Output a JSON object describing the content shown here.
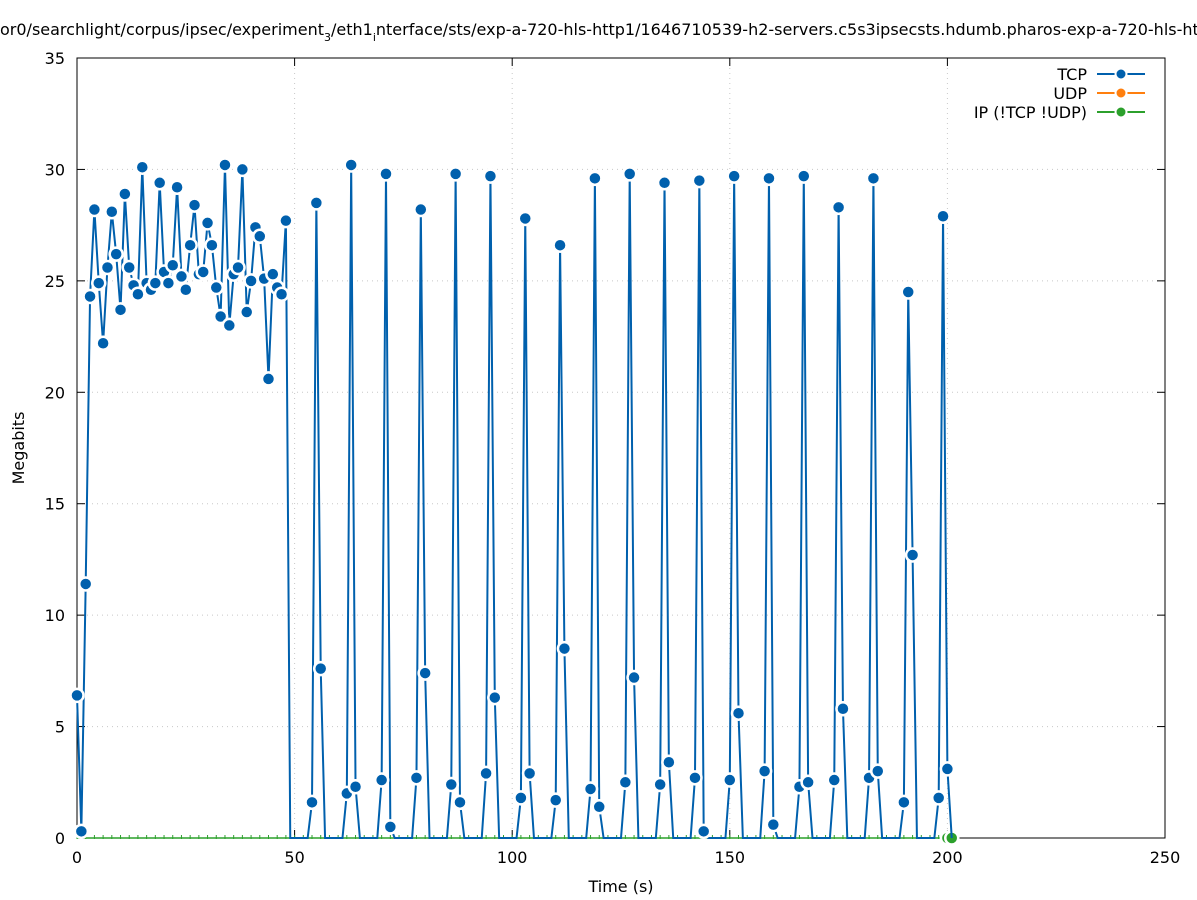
{
  "chart_data": {
    "type": "line",
    "title": "or0/searchlight/corpus/ipsec/experiment",
    "title_subscript": "3",
    "title_mid": "/eth1",
    "title_subscript2": "i",
    "title_tail": "nterface/sts/exp-a-720-hls-http1/1646710539-h2-servers.c5s3ipsecsts.hdumb.pharos-exp-a-720-hls-ht",
    "xlabel": "Time (s)",
    "ylabel": "Megabits",
    "xlim": [
      0,
      250
    ],
    "ylim": [
      0,
      35
    ],
    "xticks": [
      "0",
      "50",
      "100",
      "150",
      "200",
      "250"
    ],
    "yticks": [
      "0",
      "5",
      "10",
      "15",
      "20",
      "25",
      "30",
      "35"
    ],
    "grid": true,
    "legend_position": "top-right",
    "colors": {
      "TCP": "#0060ad",
      "UDP": "#ff7f0e",
      "IP": "#2ca02c"
    },
    "series": [
      {
        "name": "TCP",
        "points": [
          [
            0,
            6.4
          ],
          [
            1,
            0.3
          ],
          [
            2,
            11.4
          ],
          [
            3,
            24.3
          ],
          [
            4,
            28.2
          ],
          [
            5,
            24.9
          ],
          [
            6,
            22.2
          ],
          [
            7,
            25.6
          ],
          [
            8,
            28.1
          ],
          [
            9,
            26.2
          ],
          [
            10,
            23.7
          ],
          [
            11,
            28.9
          ],
          [
            12,
            25.6
          ],
          [
            13,
            24.8
          ],
          [
            14,
            24.4
          ],
          [
            15,
            30.1
          ],
          [
            16,
            24.9
          ],
          [
            17,
            24.6
          ],
          [
            18,
            24.9
          ],
          [
            19,
            29.4
          ],
          [
            20,
            25.4
          ],
          [
            21,
            24.9
          ],
          [
            22,
            25.7
          ],
          [
            23,
            29.2
          ],
          [
            24,
            25.2
          ],
          [
            25,
            24.6
          ],
          [
            26,
            26.6
          ],
          [
            27,
            28.4
          ],
          [
            28,
            25.3
          ],
          [
            29,
            25.4
          ],
          [
            30,
            27.6
          ],
          [
            31,
            26.6
          ],
          [
            32,
            24.7
          ],
          [
            33,
            23.4
          ],
          [
            34,
            30.2
          ],
          [
            35,
            23.0
          ],
          [
            36,
            25.3
          ],
          [
            37,
            25.6
          ],
          [
            38,
            30.0
          ],
          [
            39,
            23.6
          ],
          [
            40,
            25.0
          ],
          [
            41,
            27.4
          ],
          [
            42,
            27.0
          ],
          [
            43,
            25.1
          ],
          [
            44,
            20.6
          ],
          [
            45,
            25.3
          ],
          [
            46,
            24.7
          ],
          [
            47,
            24.4
          ],
          [
            48,
            27.7
          ],
          [
            49,
            0
          ],
          [
            50,
            0
          ],
          [
            51,
            0
          ],
          [
            52,
            0
          ],
          [
            53,
            0
          ],
          [
            54,
            1.6
          ],
          [
            55,
            28.5
          ],
          [
            56,
            7.6
          ],
          [
            57,
            0
          ],
          [
            58,
            0
          ],
          [
            59,
            0
          ],
          [
            60,
            0
          ],
          [
            61,
            0
          ],
          [
            62,
            2.0
          ],
          [
            63,
            30.2
          ],
          [
            64,
            2.3
          ],
          [
            65,
            0
          ],
          [
            66,
            0
          ],
          [
            67,
            0
          ],
          [
            68,
            0
          ],
          [
            69,
            0
          ],
          [
            70,
            2.6
          ],
          [
            71,
            29.8
          ],
          [
            72,
            0.5
          ],
          [
            73,
            0
          ],
          [
            74,
            0
          ],
          [
            75,
            0
          ],
          [
            76,
            0
          ],
          [
            77,
            0
          ],
          [
            78,
            2.7
          ],
          [
            79,
            28.2
          ],
          [
            80,
            7.4
          ],
          [
            81,
            0
          ],
          [
            82,
            0
          ],
          [
            83,
            0
          ],
          [
            84,
            0
          ],
          [
            85,
            0
          ],
          [
            86,
            2.4
          ],
          [
            87,
            29.8
          ],
          [
            88,
            1.6
          ],
          [
            89,
            0
          ],
          [
            90,
            0
          ],
          [
            91,
            0
          ],
          [
            92,
            0
          ],
          [
            93,
            0
          ],
          [
            94,
            2.9
          ],
          [
            95,
            29.7
          ],
          [
            96,
            6.3
          ],
          [
            97,
            0
          ],
          [
            98,
            0
          ],
          [
            99,
            0
          ],
          [
            100,
            0
          ],
          [
            101,
            0
          ],
          [
            102,
            1.8
          ],
          [
            103,
            27.8
          ],
          [
            104,
            2.9
          ],
          [
            105,
            0
          ],
          [
            106,
            0
          ],
          [
            107,
            0
          ],
          [
            108,
            0
          ],
          [
            109,
            0
          ],
          [
            110,
            1.7
          ],
          [
            111,
            26.6
          ],
          [
            112,
            8.5
          ],
          [
            113,
            0
          ],
          [
            114,
            0
          ],
          [
            115,
            0
          ],
          [
            116,
            0
          ],
          [
            117,
            0
          ],
          [
            118,
            2.2
          ],
          [
            119,
            29.6
          ],
          [
            120,
            1.4
          ],
          [
            121,
            0
          ],
          [
            122,
            0
          ],
          [
            123,
            0
          ],
          [
            124,
            0
          ],
          [
            125,
            0
          ],
          [
            126,
            2.5
          ],
          [
            127,
            29.8
          ],
          [
            128,
            7.2
          ],
          [
            129,
            0
          ],
          [
            130,
            0
          ],
          [
            131,
            0
          ],
          [
            132,
            0
          ],
          [
            133,
            0
          ],
          [
            134,
            2.4
          ],
          [
            135,
            29.4
          ],
          [
            136,
            3.4
          ],
          [
            137,
            0
          ],
          [
            138,
            0
          ],
          [
            139,
            0
          ],
          [
            140,
            0
          ],
          [
            141,
            0
          ],
          [
            142,
            2.7
          ],
          [
            143,
            29.5
          ],
          [
            144,
            0.3
          ],
          [
            145,
            0
          ],
          [
            146,
            0
          ],
          [
            147,
            0
          ],
          [
            148,
            0
          ],
          [
            149,
            0
          ],
          [
            150,
            2.6
          ],
          [
            151,
            29.7
          ],
          [
            152,
            5.6
          ],
          [
            153,
            0
          ],
          [
            154,
            0
          ],
          [
            155,
            0
          ],
          [
            156,
            0
          ],
          [
            157,
            0
          ],
          [
            158,
            3.0
          ],
          [
            159,
            29.6
          ],
          [
            160,
            0.6
          ],
          [
            161,
            0
          ],
          [
            162,
            0
          ],
          [
            163,
            0
          ],
          [
            164,
            0
          ],
          [
            165,
            0
          ],
          [
            166,
            2.3
          ],
          [
            167,
            29.7
          ],
          [
            168,
            2.5
          ],
          [
            169,
            0
          ],
          [
            170,
            0
          ],
          [
            171,
            0
          ],
          [
            172,
            0
          ],
          [
            173,
            0
          ],
          [
            174,
            2.6
          ],
          [
            175,
            28.3
          ],
          [
            176,
            5.8
          ],
          [
            177,
            0
          ],
          [
            178,
            0
          ],
          [
            179,
            0
          ],
          [
            180,
            0
          ],
          [
            181,
            0
          ],
          [
            182,
            2.7
          ],
          [
            183,
            29.6
          ],
          [
            184,
            3.0
          ],
          [
            185,
            0
          ],
          [
            186,
            0
          ],
          [
            187,
            0
          ],
          [
            188,
            0
          ],
          [
            189,
            0
          ],
          [
            190,
            1.6
          ],
          [
            191,
            24.5
          ],
          [
            192,
            12.7
          ],
          [
            193,
            0
          ],
          [
            194,
            0
          ],
          [
            195,
            0
          ],
          [
            196,
            0
          ],
          [
            197,
            0
          ],
          [
            198,
            1.8
          ],
          [
            199,
            27.9
          ],
          [
            200,
            3.1
          ],
          [
            201,
            0
          ]
        ]
      },
      {
        "name": "UDP",
        "points": []
      },
      {
        "name": "IP (!TCP  !UDP)",
        "points": [
          [
            0,
            0
          ],
          [
            2,
            0
          ],
          [
            4,
            0
          ],
          [
            6,
            0
          ],
          [
            8,
            0
          ],
          [
            10,
            0
          ],
          [
            12,
            0
          ],
          [
            14,
            0
          ],
          [
            16,
            0
          ],
          [
            18,
            0
          ],
          [
            20,
            0
          ],
          [
            22,
            0
          ],
          [
            24,
            0
          ],
          [
            26,
            0
          ],
          [
            28,
            0
          ],
          [
            30,
            0
          ],
          [
            32,
            0
          ],
          [
            34,
            0
          ],
          [
            36,
            0
          ],
          [
            38,
            0
          ],
          [
            40,
            0
          ],
          [
            42,
            0
          ],
          [
            44,
            0
          ],
          [
            46,
            0
          ],
          [
            48,
            0
          ],
          [
            50,
            0
          ],
          [
            52,
            0
          ],
          [
            54,
            0
          ],
          [
            56,
            0
          ],
          [
            58,
            0
          ],
          [
            60,
            0
          ],
          [
            62,
            0
          ],
          [
            64,
            0
          ],
          [
            66,
            0
          ],
          [
            68,
            0
          ],
          [
            70,
            0
          ],
          [
            72,
            0
          ],
          [
            74,
            0
          ],
          [
            76,
            0
          ],
          [
            78,
            0
          ],
          [
            80,
            0
          ],
          [
            82,
            0
          ],
          [
            84,
            0
          ],
          [
            86,
            0
          ],
          [
            88,
            0
          ],
          [
            90,
            0
          ],
          [
            92,
            0
          ],
          [
            94,
            0
          ],
          [
            96,
            0
          ],
          [
            98,
            0
          ],
          [
            100,
            0
          ],
          [
            102,
            0
          ],
          [
            104,
            0
          ],
          [
            106,
            0
          ],
          [
            108,
            0
          ],
          [
            110,
            0
          ],
          [
            112,
            0
          ],
          [
            114,
            0
          ],
          [
            116,
            0
          ],
          [
            118,
            0
          ],
          [
            120,
            0
          ],
          [
            122,
            0
          ],
          [
            124,
            0
          ],
          [
            126,
            0
          ],
          [
            128,
            0
          ],
          [
            130,
            0
          ],
          [
            132,
            0
          ],
          [
            134,
            0
          ],
          [
            136,
            0
          ],
          [
            138,
            0
          ],
          [
            140,
            0
          ],
          [
            142,
            0
          ],
          [
            144,
            0
          ],
          [
            146,
            0
          ],
          [
            148,
            0
          ],
          [
            150,
            0
          ],
          [
            152,
            0
          ],
          [
            154,
            0
          ],
          [
            156,
            0
          ],
          [
            158,
            0
          ],
          [
            160,
            0
          ],
          [
            162,
            0
          ],
          [
            164,
            0
          ],
          [
            166,
            0
          ],
          [
            168,
            0
          ],
          [
            170,
            0
          ],
          [
            172,
            0
          ],
          [
            174,
            0
          ],
          [
            176,
            0
          ],
          [
            178,
            0
          ],
          [
            180,
            0
          ],
          [
            182,
            0
          ],
          [
            184,
            0
          ],
          [
            186,
            0
          ],
          [
            188,
            0
          ],
          [
            190,
            0
          ],
          [
            192,
            0
          ],
          [
            194,
            0
          ],
          [
            196,
            0
          ],
          [
            198,
            0
          ],
          [
            200,
            0
          ],
          [
            201,
            0
          ]
        ]
      }
    ]
  }
}
